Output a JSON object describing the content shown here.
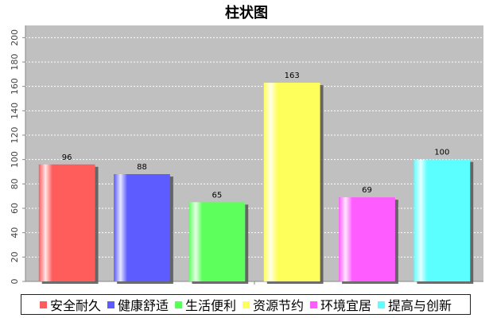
{
  "chart_data": {
    "type": "bar",
    "title": "柱状图",
    "xlabel": "",
    "ylabel": "",
    "categories": [
      "安全耐久",
      "健康舒适",
      "生活便利",
      "资源节约",
      "环境宜居",
      "提高与创新"
    ],
    "values": [
      96,
      88,
      65,
      163,
      69,
      100
    ],
    "colors": [
      "#ff5b5b",
      "#5b5bff",
      "#5bff5b",
      "#ffff5b",
      "#ff5bff",
      "#5bffff"
    ],
    "ylim": [
      0,
      210
    ],
    "yticks": [
      0,
      20,
      40,
      60,
      80,
      100,
      120,
      140,
      160,
      180,
      200
    ],
    "plot_background": "#c0c0c0",
    "grid": true,
    "legend_position": "bottom"
  }
}
